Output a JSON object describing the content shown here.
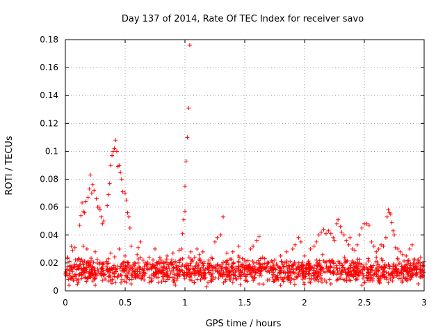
{
  "chart_data": {
    "type": "scatter",
    "title": "Day 137 of 2014, Rate Of TEC Index for receiver savo",
    "xlabel": "GPS time / hours",
    "ylabel": "ROTI / TECUs",
    "xlim": [
      0,
      3
    ],
    "ylim": [
      0,
      0.18
    ],
    "xticks": [
      0,
      0.5,
      1,
      1.5,
      2,
      2.5,
      3
    ],
    "xtick_labels": [
      "0",
      "0.5",
      "1",
      "1.5",
      "2",
      "2.5",
      "3"
    ],
    "yticks": [
      0,
      0.02,
      0.04,
      0.06,
      0.08,
      0.1,
      0.12,
      0.14,
      0.16,
      0.18
    ],
    "ytick_labels": [
      "0",
      "0.02",
      "0.04",
      "0.06",
      "0.08",
      "0.1",
      "0.12",
      "0.14",
      "0.16",
      "0.18"
    ],
    "grid": true,
    "marker": "+",
    "color": "#ff0000",
    "series": [
      {
        "name": "ROTI",
        "points": [
          [
            0.0,
            0.012
          ],
          [
            0.02,
            0.024
          ],
          [
            0.04,
            0.018
          ],
          [
            0.06,
            0.029
          ],
          [
            0.08,
            0.031
          ],
          [
            0.1,
            0.022
          ],
          [
            0.12,
            0.047
          ],
          [
            0.13,
            0.054
          ],
          [
            0.14,
            0.063
          ],
          [
            0.15,
            0.057
          ],
          [
            0.16,
            0.056
          ],
          [
            0.17,
            0.064
          ],
          [
            0.19,
            0.067
          ],
          [
            0.2,
            0.073
          ],
          [
            0.21,
            0.083
          ],
          [
            0.22,
            0.07
          ],
          [
            0.23,
            0.076
          ],
          [
            0.24,
            0.072
          ],
          [
            0.26,
            0.066
          ],
          [
            0.27,
            0.06
          ],
          [
            0.28,
            0.06
          ],
          [
            0.29,
            0.058
          ],
          [
            0.3,
            0.053
          ],
          [
            0.31,
            0.048
          ],
          [
            0.32,
            0.05
          ],
          [
            0.35,
            0.061
          ],
          [
            0.36,
            0.069
          ],
          [
            0.37,
            0.077
          ],
          [
            0.38,
            0.09
          ],
          [
            0.39,
            0.097
          ],
          [
            0.4,
            0.1
          ],
          [
            0.41,
            0.102
          ],
          [
            0.42,
            0.108
          ],
          [
            0.43,
            0.1
          ],
          [
            0.44,
            0.089
          ],
          [
            0.45,
            0.09
          ],
          [
            0.46,
            0.085
          ],
          [
            0.47,
            0.08
          ],
          [
            0.48,
            0.071
          ],
          [
            0.5,
            0.07
          ],
          [
            0.51,
            0.065
          ],
          [
            0.52,
            0.056
          ],
          [
            0.53,
            0.053
          ],
          [
            0.54,
            0.045
          ],
          [
            0.36,
            0.023
          ],
          [
            0.25,
            0.028
          ],
          [
            0.18,
            0.03
          ],
          [
            0.15,
            0.032
          ],
          [
            0.38,
            0.027
          ],
          [
            0.45,
            0.03
          ],
          [
            0.5,
            0.025
          ],
          [
            0.55,
            0.032
          ],
          [
            0.6,
            0.026
          ],
          [
            0.65,
            0.022
          ],
          [
            0.7,
            0.024
          ],
          [
            0.8,
            0.022
          ],
          [
            0.85,
            0.025
          ],
          [
            0.9,
            0.027
          ],
          [
            0.95,
            0.029
          ],
          [
            0.97,
            0.03
          ],
          [
            0.98,
            0.041
          ],
          [
            0.99,
            0.051
          ],
          [
            1.0,
            0.057
          ],
          [
            1.0,
            0.075
          ],
          [
            1.01,
            0.093
          ],
          [
            1.02,
            0.11
          ],
          [
            1.03,
            0.131
          ],
          [
            1.04,
            0.176
          ],
          [
            1.05,
            0.028
          ],
          [
            1.08,
            0.024
          ],
          [
            1.1,
            0.03
          ],
          [
            1.12,
            0.026
          ],
          [
            1.15,
            0.028
          ],
          [
            1.2,
            0.022
          ],
          [
            1.22,
            0.024
          ],
          [
            1.25,
            0.035
          ],
          [
            1.27,
            0.038
          ],
          [
            1.3,
            0.04
          ],
          [
            1.32,
            0.053
          ],
          [
            1.35,
            0.027
          ],
          [
            1.4,
            0.028
          ],
          [
            1.45,
            0.025
          ],
          [
            1.5,
            0.022
          ],
          [
            1.55,
            0.03
          ],
          [
            1.57,
            0.032
          ],
          [
            1.6,
            0.036
          ],
          [
            1.62,
            0.039
          ],
          [
            1.65,
            0.024
          ],
          [
            1.7,
            0.02
          ],
          [
            1.75,
            0.022
          ],
          [
            1.8,
            0.025
          ],
          [
            1.85,
            0.028
          ],
          [
            1.9,
            0.03
          ],
          [
            1.92,
            0.033
          ],
          [
            1.95,
            0.038
          ],
          [
            1.97,
            0.035
          ],
          [
            2.0,
            0.025
          ],
          [
            2.05,
            0.03
          ],
          [
            2.08,
            0.032
          ],
          [
            2.1,
            0.035
          ],
          [
            2.12,
            0.04
          ],
          [
            2.14,
            0.042
          ],
          [
            2.16,
            0.044
          ],
          [
            2.18,
            0.041
          ],
          [
            2.2,
            0.043
          ],
          [
            2.22,
            0.041
          ],
          [
            2.24,
            0.038
          ],
          [
            2.25,
            0.036
          ],
          [
            2.27,
            0.048
          ],
          [
            2.28,
            0.051
          ],
          [
            2.3,
            0.046
          ],
          [
            2.31,
            0.042
          ],
          [
            2.33,
            0.04
          ],
          [
            2.35,
            0.036
          ],
          [
            2.37,
            0.033
          ],
          [
            2.38,
            0.038
          ],
          [
            2.4,
            0.03
          ],
          [
            2.42,
            0.029
          ],
          [
            2.44,
            0.033
          ],
          [
            2.46,
            0.04
          ],
          [
            2.48,
            0.045
          ],
          [
            2.5,
            0.048
          ],
          [
            2.52,
            0.048
          ],
          [
            2.54,
            0.047
          ],
          [
            2.56,
            0.035
          ],
          [
            2.58,
            0.032
          ],
          [
            2.6,
            0.028
          ],
          [
            2.62,
            0.03
          ],
          [
            2.64,
            0.033
          ],
          [
            2.66,
            0.032
          ],
          [
            2.68,
            0.038
          ],
          [
            2.69,
            0.053
          ],
          [
            2.7,
            0.058
          ],
          [
            2.71,
            0.056
          ],
          [
            2.72,
            0.055
          ],
          [
            2.73,
            0.049
          ],
          [
            2.74,
            0.043
          ],
          [
            2.75,
            0.04
          ],
          [
            2.76,
            0.031
          ],
          [
            2.78,
            0.03
          ],
          [
            2.8,
            0.028
          ],
          [
            2.82,
            0.026
          ],
          [
            2.85,
            0.025
          ],
          [
            2.88,
            0.03
          ],
          [
            2.9,
            0.033
          ],
          [
            2.92,
            0.022
          ],
          [
            2.95,
            0.02
          ],
          [
            2.97,
            0.024
          ],
          [
            3.0,
            0.021
          ],
          [
            2.35,
            0.021
          ],
          [
            2.15,
            0.026
          ],
          [
            1.45,
            0.032
          ],
          [
            0.05,
            0.032
          ],
          [
            0.75,
            0.03
          ],
          [
            0.88,
            0.02
          ],
          [
            1.85,
            0.02
          ],
          [
            2.6,
            0.024
          ],
          [
            0.61,
            0.031
          ],
          [
            0.63,
            0.035
          ],
          [
            2.1,
            0.022
          ],
          [
            0.11,
            0.008
          ],
          [
            0.25,
            0.004
          ],
          [
            0.42,
            0.006
          ],
          [
            0.55,
            0.005
          ],
          [
            0.7,
            0.006
          ],
          [
            0.92,
            0.004
          ],
          [
            1.18,
            0.003
          ],
          [
            1.4,
            0.006
          ],
          [
            1.62,
            0.005
          ],
          [
            1.8,
            0.004
          ],
          [
            2.05,
            0.006
          ],
          [
            2.22,
            0.005
          ],
          [
            2.48,
            0.004
          ],
          [
            2.7,
            0.006
          ],
          [
            2.95,
            0.005
          ],
          [
            0.03,
            0.004
          ]
        ],
        "band": {
          "description": "dense cloud of background points",
          "x_range": [
            0,
            3
          ],
          "y_range": [
            0.003,
            0.026
          ],
          "count": 1400
        }
      }
    ]
  }
}
